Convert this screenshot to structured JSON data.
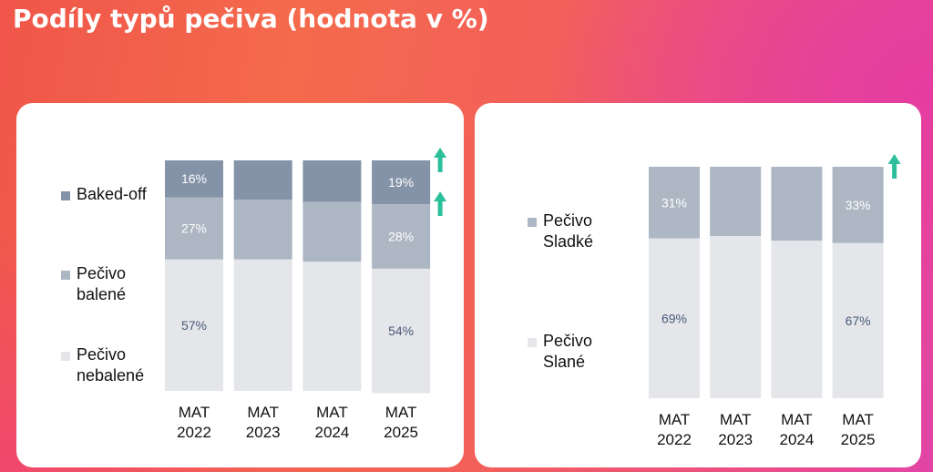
{
  "page": {
    "title": "Podíly typů pečiva (hodnota v %)"
  },
  "colors": {
    "baked_off": "#8593a8",
    "baleni": "#adb7c4",
    "nebaleni": "#e4e6ea",
    "label_light": "#ffffff",
    "label_dark": "#4a5a78",
    "arrow": "#2bbf9b"
  },
  "chart_data": [
    {
      "type": "bar",
      "stacked": true,
      "categories": [
        "MAT 2022",
        "MAT 2023",
        "MAT 2024",
        "MAT 2025"
      ],
      "ylim": [
        0,
        100
      ],
      "legend_position": "left",
      "series": [
        {
          "name": "Baked-off",
          "values": [
            16,
            17,
            18,
            19
          ],
          "labels": [
            "16%",
            "",
            "",
            "19%"
          ],
          "trend_up": true
        },
        {
          "name": "Pečivo balené",
          "values": [
            27,
            26,
            26,
            28
          ],
          "labels": [
            "27%",
            "",
            "",
            "28%"
          ],
          "trend_up": true
        },
        {
          "name": "Pečivo nebalené",
          "values": [
            57,
            57,
            56,
            54
          ],
          "labels": [
            "57%",
            "",
            "",
            "54%"
          ],
          "trend_up": false
        }
      ]
    },
    {
      "type": "bar",
      "stacked": true,
      "categories": [
        "MAT 2022",
        "MAT 2023",
        "MAT 2024",
        "MAT 2025"
      ],
      "ylim": [
        0,
        100
      ],
      "legend_position": "left",
      "series": [
        {
          "name": "Pečivo Sladké",
          "values": [
            31,
            30,
            32,
            33
          ],
          "labels": [
            "31%",
            "",
            "",
            "33%"
          ],
          "trend_up": true
        },
        {
          "name": "Pečivo Slané",
          "values": [
            69,
            70,
            68,
            67
          ],
          "labels": [
            "69%",
            "",
            "",
            "67%"
          ],
          "trend_up": false
        }
      ]
    }
  ]
}
